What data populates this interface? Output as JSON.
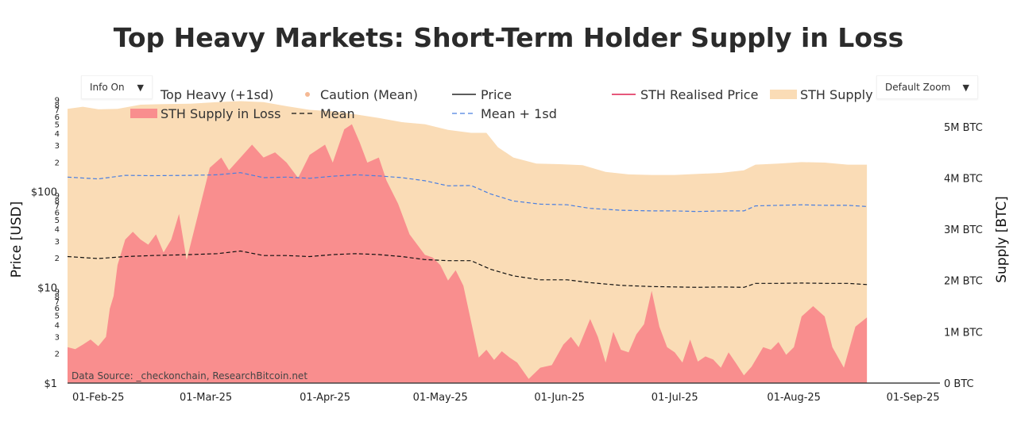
{
  "title": "Top Heavy Markets: Short-Term Holder Supply in Loss",
  "controls": {
    "info": {
      "label": "Info On"
    },
    "zoom": {
      "label": "Default Zoom"
    }
  },
  "colors": {
    "sth_supply": "#fadcb6",
    "sth_loss": "#f98e8e",
    "mean": "#111111",
    "mean_1sd": "#4a7fe0",
    "caution": "#f5b994",
    "price": "#444444",
    "realised": "#e2406a"
  },
  "legend": [
    {
      "key": "top_heavy",
      "label": "Top Heavy (+1sd)",
      "symbol": "none"
    },
    {
      "key": "caution",
      "label": "Caution (Mean)",
      "symbol": "dot"
    },
    {
      "key": "price",
      "label": "Price",
      "symbol": "line"
    },
    {
      "key": "realised",
      "label": "STH Realised Price",
      "symbol": "line"
    },
    {
      "key": "sth_supply",
      "label": "STH Supply",
      "symbol": "fill"
    },
    {
      "key": "sth_loss",
      "label": "STH Supply in Loss",
      "symbol": "fill"
    },
    {
      "key": "mean",
      "label": "Mean",
      "symbol": "dash"
    },
    {
      "key": "mean_1sd",
      "label": "Mean + 1sd",
      "symbol": "dash"
    }
  ],
  "watermark": "checkonchain",
  "source": "Data Source: _checkonchain, ResearchBitcoin.net",
  "chart_data": {
    "type": "area",
    "x_unit": "date",
    "x_ticks": [
      "01-Feb-25",
      "01-Mar-25",
      "01-Apr-25",
      "01-May-25",
      "01-Jun-25",
      "01-Jul-25",
      "01-Aug-25",
      "01-Sep-25"
    ],
    "x_tick_dates": [
      "2025-02-01",
      "2025-03-01",
      "2025-04-01",
      "2025-05-01",
      "2025-06-01",
      "2025-07-01",
      "2025-08-01",
      "2025-09-01"
    ],
    "xlim": [
      "2025-01-24",
      "2025-09-08"
    ],
    "y_left": {
      "label": "Price [USD]",
      "scale": "log",
      "range": [
        1,
        1000
      ],
      "major_ticks": [
        {
          "v": 1,
          "t": "$1"
        },
        {
          "v": 10,
          "t": "$10"
        },
        {
          "v": 100,
          "t": "$100"
        }
      ],
      "minor_ticks": [
        2,
        3,
        4,
        5,
        6,
        7,
        8,
        9
      ]
    },
    "y_right": {
      "label": "Supply [BTC]",
      "range": [
        0,
        5600000
      ],
      "ticks": [
        {
          "v": 0,
          "t": "0 BTC"
        },
        {
          "v": 1000000,
          "t": "1M BTC"
        },
        {
          "v": 2000000,
          "t": "2M BTC"
        },
        {
          "v": 3000000,
          "t": "3M BTC"
        },
        {
          "v": 4000000,
          "t": "4M BTC"
        },
        {
          "v": 5000000,
          "t": "5M BTC"
        }
      ]
    },
    "series": [
      {
        "name": "STH Supply",
        "axis": "right",
        "points": [
          [
            "2025-01-24",
            5350000
          ],
          [
            "2025-01-28",
            5390000
          ],
          [
            "2025-02-01",
            5340000
          ],
          [
            "2025-02-06",
            5350000
          ],
          [
            "2025-02-12",
            5430000
          ],
          [
            "2025-02-18",
            5440000
          ],
          [
            "2025-02-25",
            5450000
          ],
          [
            "2025-03-04",
            5480000
          ],
          [
            "2025-03-10",
            5500000
          ],
          [
            "2025-03-16",
            5480000
          ],
          [
            "2025-03-22",
            5400000
          ],
          [
            "2025-03-28",
            5330000
          ],
          [
            "2025-04-03",
            5300000
          ],
          [
            "2025-04-09",
            5240000
          ],
          [
            "2025-04-15",
            5170000
          ],
          [
            "2025-04-21",
            5090000
          ],
          [
            "2025-04-27",
            5050000
          ],
          [
            "2025-05-03",
            4940000
          ],
          [
            "2025-05-09",
            4880000
          ],
          [
            "2025-05-13",
            4880000
          ],
          [
            "2025-05-16",
            4600000
          ],
          [
            "2025-05-20",
            4400000
          ],
          [
            "2025-05-26",
            4280000
          ],
          [
            "2025-06-01",
            4270000
          ],
          [
            "2025-06-07",
            4250000
          ],
          [
            "2025-06-13",
            4120000
          ],
          [
            "2025-06-19",
            4070000
          ],
          [
            "2025-06-25",
            4060000
          ],
          [
            "2025-07-01",
            4060000
          ],
          [
            "2025-07-07",
            4080000
          ],
          [
            "2025-07-13",
            4100000
          ],
          [
            "2025-07-19",
            4150000
          ],
          [
            "2025-07-22",
            4260000
          ],
          [
            "2025-07-28",
            4280000
          ],
          [
            "2025-08-03",
            4310000
          ],
          [
            "2025-08-09",
            4300000
          ],
          [
            "2025-08-15",
            4260000
          ],
          [
            "2025-08-20",
            4260000
          ]
        ]
      },
      {
        "name": "STH Supply in Loss",
        "axis": "right",
        "points": [
          [
            "2025-01-24",
            700000
          ],
          [
            "2025-01-26",
            660000
          ],
          [
            "2025-01-28",
            750000
          ],
          [
            "2025-01-30",
            850000
          ],
          [
            "2025-02-01",
            720000
          ],
          [
            "2025-02-03",
            900000
          ],
          [
            "2025-02-04",
            1450000
          ],
          [
            "2025-02-05",
            1700000
          ],
          [
            "2025-02-06",
            2300000
          ],
          [
            "2025-02-08",
            2800000
          ],
          [
            "2025-02-10",
            2950000
          ],
          [
            "2025-02-12",
            2800000
          ],
          [
            "2025-02-14",
            2700000
          ],
          [
            "2025-02-16",
            2900000
          ],
          [
            "2025-02-18",
            2550000
          ],
          [
            "2025-02-20",
            2800000
          ],
          [
            "2025-02-22",
            3300000
          ],
          [
            "2025-02-24",
            2400000
          ],
          [
            "2025-02-26",
            3000000
          ],
          [
            "2025-02-28",
            3600000
          ],
          [
            "2025-03-02",
            4200000
          ],
          [
            "2025-03-05",
            4400000
          ],
          [
            "2025-03-07",
            4150000
          ],
          [
            "2025-03-10",
            4400000
          ],
          [
            "2025-03-13",
            4650000
          ],
          [
            "2025-03-16",
            4400000
          ],
          [
            "2025-03-19",
            4500000
          ],
          [
            "2025-03-22",
            4300000
          ],
          [
            "2025-03-25",
            4000000
          ],
          [
            "2025-03-28",
            4450000
          ],
          [
            "2025-04-01",
            4650000
          ],
          [
            "2025-04-03",
            4300000
          ],
          [
            "2025-04-06",
            4950000
          ],
          [
            "2025-04-08",
            5050000
          ],
          [
            "2025-04-10",
            4700000
          ],
          [
            "2025-04-12",
            4300000
          ],
          [
            "2025-04-15",
            4400000
          ],
          [
            "2025-04-17",
            3950000
          ],
          [
            "2025-04-20",
            3500000
          ],
          [
            "2025-04-23",
            2900000
          ],
          [
            "2025-04-27",
            2500000
          ],
          [
            "2025-04-29",
            2450000
          ],
          [
            "2025-05-01",
            2300000
          ],
          [
            "2025-05-03",
            2000000
          ],
          [
            "2025-05-05",
            2200000
          ],
          [
            "2025-05-07",
            1900000
          ],
          [
            "2025-05-09",
            1200000
          ],
          [
            "2025-05-11",
            500000
          ],
          [
            "2025-05-13",
            650000
          ],
          [
            "2025-05-15",
            450000
          ],
          [
            "2025-05-17",
            620000
          ],
          [
            "2025-05-19",
            500000
          ],
          [
            "2025-05-21",
            400000
          ],
          [
            "2025-05-24",
            80000
          ],
          [
            "2025-05-27",
            300000
          ],
          [
            "2025-05-30",
            350000
          ],
          [
            "2025-06-02",
            750000
          ],
          [
            "2025-06-04",
            900000
          ],
          [
            "2025-06-06",
            700000
          ],
          [
            "2025-06-09",
            1250000
          ],
          [
            "2025-06-11",
            900000
          ],
          [
            "2025-06-13",
            400000
          ],
          [
            "2025-06-15",
            1000000
          ],
          [
            "2025-06-17",
            650000
          ],
          [
            "2025-06-19",
            600000
          ],
          [
            "2025-06-21",
            950000
          ],
          [
            "2025-06-23",
            1150000
          ],
          [
            "2025-06-25",
            1800000
          ],
          [
            "2025-06-27",
            1100000
          ],
          [
            "2025-06-29",
            700000
          ],
          [
            "2025-07-01",
            600000
          ],
          [
            "2025-07-03",
            400000
          ],
          [
            "2025-07-05",
            850000
          ],
          [
            "2025-07-07",
            420000
          ],
          [
            "2025-07-09",
            520000
          ],
          [
            "2025-07-11",
            460000
          ],
          [
            "2025-07-13",
            300000
          ],
          [
            "2025-07-15",
            600000
          ],
          [
            "2025-07-17",
            380000
          ],
          [
            "2025-07-19",
            150000
          ],
          [
            "2025-07-21",
            320000
          ],
          [
            "2025-07-24",
            700000
          ],
          [
            "2025-07-26",
            650000
          ],
          [
            "2025-07-28",
            800000
          ],
          [
            "2025-07-30",
            550000
          ],
          [
            "2025-08-01",
            700000
          ],
          [
            "2025-08-03",
            1300000
          ],
          [
            "2025-08-06",
            1500000
          ],
          [
            "2025-08-09",
            1300000
          ],
          [
            "2025-08-11",
            700000
          ],
          [
            "2025-08-14",
            300000
          ],
          [
            "2025-08-17",
            1100000
          ],
          [
            "2025-08-20",
            1280000
          ]
        ]
      },
      {
        "name": "Mean + 1sd",
        "axis": "left",
        "points": [
          [
            "2025-01-24",
            142
          ],
          [
            "2025-02-01",
            136
          ],
          [
            "2025-02-08",
            148
          ],
          [
            "2025-02-15",
            147
          ],
          [
            "2025-02-25",
            148
          ],
          [
            "2025-03-04",
            150
          ],
          [
            "2025-03-10",
            158
          ],
          [
            "2025-03-16",
            140
          ],
          [
            "2025-03-22",
            142
          ],
          [
            "2025-03-28",
            138
          ],
          [
            "2025-04-03",
            145
          ],
          [
            "2025-04-09",
            150
          ],
          [
            "2025-04-15",
            146
          ],
          [
            "2025-04-21",
            140
          ],
          [
            "2025-04-27",
            130
          ],
          [
            "2025-05-03",
            115
          ],
          [
            "2025-05-09",
            116
          ],
          [
            "2025-05-14",
            95
          ],
          [
            "2025-05-20",
            80
          ],
          [
            "2025-05-27",
            74
          ],
          [
            "2025-06-03",
            73
          ],
          [
            "2025-06-09",
            67
          ],
          [
            "2025-06-17",
            64
          ],
          [
            "2025-06-25",
            63
          ],
          [
            "2025-07-01",
            63
          ],
          [
            "2025-07-07",
            62
          ],
          [
            "2025-07-13",
            63
          ],
          [
            "2025-07-19",
            63
          ],
          [
            "2025-07-22",
            71
          ],
          [
            "2025-07-28",
            72
          ],
          [
            "2025-08-03",
            73
          ],
          [
            "2025-08-09",
            72
          ],
          [
            "2025-08-15",
            72
          ],
          [
            "2025-08-20",
            70
          ]
        ]
      },
      {
        "name": "Mean",
        "axis": "left",
        "points": [
          [
            "2025-01-24",
            21
          ],
          [
            "2025-02-01",
            20
          ],
          [
            "2025-02-08",
            21
          ],
          [
            "2025-02-15",
            21.5
          ],
          [
            "2025-02-25",
            22
          ],
          [
            "2025-03-04",
            22.5
          ],
          [
            "2025-03-10",
            24
          ],
          [
            "2025-03-16",
            21.5
          ],
          [
            "2025-03-22",
            21.5
          ],
          [
            "2025-03-28",
            21
          ],
          [
            "2025-04-03",
            22
          ],
          [
            "2025-04-09",
            22.5
          ],
          [
            "2025-04-15",
            22
          ],
          [
            "2025-04-21",
            21
          ],
          [
            "2025-04-27",
            19.5
          ],
          [
            "2025-05-03",
            19
          ],
          [
            "2025-05-09",
            19
          ],
          [
            "2025-05-14",
            15.5
          ],
          [
            "2025-05-20",
            13.2
          ],
          [
            "2025-05-27",
            12
          ],
          [
            "2025-06-03",
            12
          ],
          [
            "2025-06-09",
            11.2
          ],
          [
            "2025-06-17",
            10.5
          ],
          [
            "2025-06-25",
            10.2
          ],
          [
            "2025-07-01",
            10.1
          ],
          [
            "2025-07-07",
            10
          ],
          [
            "2025-07-13",
            10.1
          ],
          [
            "2025-07-19",
            10
          ],
          [
            "2025-07-22",
            11
          ],
          [
            "2025-07-28",
            11
          ],
          [
            "2025-08-03",
            11.1
          ],
          [
            "2025-08-09",
            11
          ],
          [
            "2025-08-15",
            11
          ],
          [
            "2025-08-20",
            10.7
          ]
        ]
      }
    ]
  }
}
